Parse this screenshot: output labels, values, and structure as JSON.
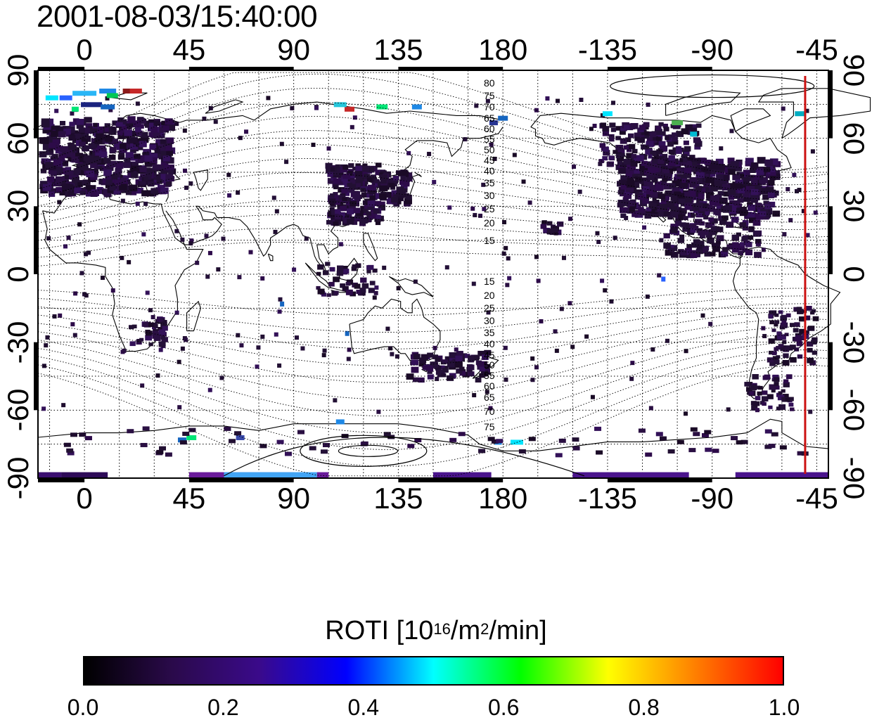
{
  "timestamp": "2001-08-03/15:40:00",
  "x_ticks": [
    "0",
    "45",
    "90",
    "135",
    "180",
    "-135",
    "-90",
    "-45"
  ],
  "y_ticks_left": [
    "90",
    "60",
    "30",
    "0",
    "-30",
    "-60",
    "-90"
  ],
  "y_ticks_right": [
    "90",
    "60",
    "30",
    "0",
    "-30",
    "-60",
    "-90"
  ],
  "mlat_labels_north": [
    "80",
    "75",
    "70",
    "65",
    "60",
    "55",
    "50",
    "45",
    "40",
    "35",
    "30",
    "25",
    "20",
    "15"
  ],
  "mlat_labels_south": [
    "15",
    "20",
    "25",
    "30",
    "35",
    "40",
    "45",
    "50",
    "55",
    "60",
    "65",
    "70",
    "75"
  ],
  "colorbar": {
    "title_prefix": "ROTI  [10",
    "title_exp1": "16",
    "title_mid": "/m",
    "title_exp2": "2",
    "title_suffix": "/min]",
    "ticks": [
      "0.0",
      "0.2",
      "0.4",
      "0.6",
      "0.8",
      "1.0"
    ],
    "range": [
      0.0,
      1.0
    ]
  },
  "colors": {
    "terminator_line": "#cc1111",
    "scale": [
      "#000000",
      "#2a0a4a",
      "#3a0a8a",
      "#0000ff",
      "#00ffff",
      "#00ff00",
      "#ffff00",
      "#ff7f00",
      "#ff0000"
    ]
  },
  "map": {
    "projection": "equirectangular",
    "x_range_deg": [
      -20,
      320
    ],
    "y_range_deg": [
      -90,
      90
    ],
    "grid": "dotted, 15 deg",
    "terminator_longitude": "-50"
  }
}
